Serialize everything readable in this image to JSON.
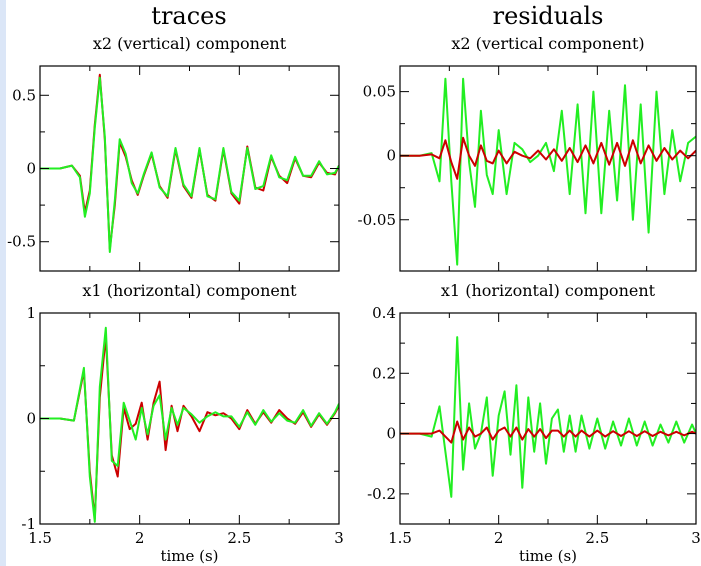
{
  "titles": {
    "left": "traces",
    "right": "residuals"
  },
  "xlabel": "time (s)",
  "colors": {
    "series_red": "#cc0000",
    "series_green": "#22ee22",
    "frame": "#000000",
    "page_edge": "#dbe6f7"
  },
  "chart_data": [
    {
      "id": "traces-x2",
      "type": "line",
      "subtitle": "x2 (vertical) component",
      "xlim": [
        1.5,
        3.0
      ],
      "ylim": [
        -0.7,
        0.7
      ],
      "xticks": [
        1.5,
        2,
        2.5,
        3
      ],
      "xtick_labels": [
        "",
        "",
        "",
        ""
      ],
      "yticks": [
        -0.5,
        0,
        0.5
      ],
      "ytick_labels": [
        "-0.5",
        "0",
        "0.5"
      ],
      "xlabel": "",
      "series": [
        {
          "color": "red",
          "x": [
            1.5,
            1.6,
            1.66,
            1.7,
            1.725,
            1.75,
            1.775,
            1.8,
            1.825,
            1.85,
            1.875,
            1.9,
            1.93,
            1.96,
            1.99,
            2.02,
            2.06,
            2.1,
            2.14,
            2.18,
            2.22,
            2.26,
            2.3,
            2.34,
            2.38,
            2.42,
            2.46,
            2.5,
            2.54,
            2.58,
            2.62,
            2.66,
            2.7,
            2.74,
            2.78,
            2.82,
            2.86,
            2.9,
            2.94,
            2.98,
            3.0
          ],
          "y": [
            0,
            0,
            0.02,
            -0.05,
            -0.3,
            -0.15,
            0.3,
            0.64,
            0.2,
            -0.55,
            -0.25,
            0.18,
            0.08,
            -0.08,
            -0.18,
            -0.05,
            0.1,
            -0.12,
            -0.2,
            0.13,
            -0.12,
            -0.2,
            0.13,
            -0.18,
            -0.22,
            0.13,
            -0.17,
            -0.24,
            0.15,
            -0.13,
            -0.15,
            0.08,
            -0.05,
            -0.1,
            0.07,
            -0.05,
            -0.06,
            0.04,
            -0.03,
            -0.04,
            0.02
          ]
        },
        {
          "color": "green",
          "x": [
            1.5,
            1.6,
            1.66,
            1.7,
            1.725,
            1.75,
            1.775,
            1.8,
            1.825,
            1.85,
            1.875,
            1.9,
            1.93,
            1.96,
            1.99,
            2.02,
            2.06,
            2.1,
            2.14,
            2.18,
            2.22,
            2.26,
            2.3,
            2.34,
            2.38,
            2.42,
            2.46,
            2.5,
            2.54,
            2.58,
            2.62,
            2.66,
            2.7,
            2.74,
            2.78,
            2.82,
            2.86,
            2.9,
            2.94,
            2.98,
            3.0
          ],
          "y": [
            0,
            0,
            0.02,
            -0.06,
            -0.33,
            -0.17,
            0.28,
            0.62,
            0.22,
            -0.57,
            -0.22,
            0.2,
            0.1,
            -0.1,
            -0.17,
            -0.04,
            0.11,
            -0.13,
            -0.19,
            0.14,
            -0.11,
            -0.19,
            0.14,
            -0.19,
            -0.21,
            0.14,
            -0.16,
            -0.22,
            0.14,
            -0.14,
            -0.12,
            0.09,
            -0.06,
            -0.08,
            0.08,
            -0.05,
            -0.05,
            0.05,
            -0.04,
            -0.03,
            0.02
          ]
        }
      ]
    },
    {
      "id": "residuals-x2",
      "type": "line",
      "subtitle": "x2 (vertical component)",
      "xlim": [
        1.5,
        3.0
      ],
      "ylim": [
        -0.09,
        0.07
      ],
      "xticks": [
        1.5,
        2,
        2.5,
        3
      ],
      "xtick_labels": [
        "",
        "",
        "",
        ""
      ],
      "yticks": [
        -0.05,
        0,
        0.05
      ],
      "ytick_labels": [
        "-0.05",
        "0",
        "0.05"
      ],
      "xlabel": "",
      "series": [
        {
          "color": "green",
          "x": [
            1.5,
            1.6,
            1.66,
            1.7,
            1.73,
            1.76,
            1.79,
            1.82,
            1.85,
            1.88,
            1.91,
            1.94,
            1.97,
            2.0,
            2.04,
            2.08,
            2.12,
            2.16,
            2.2,
            2.24,
            2.28,
            2.32,
            2.36,
            2.4,
            2.44,
            2.48,
            2.52,
            2.56,
            2.6,
            2.64,
            2.68,
            2.72,
            2.76,
            2.8,
            2.84,
            2.88,
            2.92,
            2.96,
            3.0
          ],
          "y": [
            0,
            0,
            0.002,
            -0.02,
            0.06,
            -0.02,
            -0.085,
            0.06,
            -0.005,
            -0.04,
            0.035,
            -0.015,
            -0.03,
            0.02,
            -0.03,
            0.01,
            0.005,
            -0.005,
            0.0,
            0.01,
            -0.012,
            0.035,
            -0.03,
            0.04,
            -0.045,
            0.05,
            -0.045,
            0.035,
            -0.035,
            0.055,
            -0.05,
            0.04,
            -0.06,
            0.05,
            -0.03,
            0.02,
            -0.02,
            0.01,
            0.015
          ]
        },
        {
          "color": "red",
          "x": [
            1.5,
            1.6,
            1.66,
            1.7,
            1.73,
            1.76,
            1.79,
            1.82,
            1.85,
            1.88,
            1.91,
            1.94,
            1.97,
            2.0,
            2.04,
            2.08,
            2.12,
            2.16,
            2.2,
            2.24,
            2.28,
            2.32,
            2.36,
            2.4,
            2.44,
            2.48,
            2.52,
            2.56,
            2.6,
            2.64,
            2.68,
            2.72,
            2.76,
            2.8,
            2.84,
            2.88,
            2.92,
            2.96,
            3.0
          ],
          "y": [
            0,
            0,
            0.001,
            -0.002,
            0.012,
            -0.005,
            -0.018,
            0.014,
            0.0,
            -0.008,
            0.008,
            -0.004,
            -0.006,
            0.004,
            -0.006,
            0.003,
            0.0,
            -0.002,
            0.004,
            -0.003,
            0.005,
            -0.004,
            0.006,
            -0.005,
            0.008,
            -0.006,
            0.01,
            -0.007,
            0.01,
            -0.008,
            0.012,
            -0.006,
            0.008,
            -0.004,
            0.006,
            -0.003,
            0.004,
            -0.002,
            0.004
          ]
        }
      ]
    },
    {
      "id": "traces-x1",
      "type": "line",
      "subtitle": "x1 (horizontal) component",
      "xlim": [
        1.5,
        3.0
      ],
      "ylim": [
        -1.0,
        1.0
      ],
      "xticks": [
        1.5,
        2,
        2.5,
        3
      ],
      "xtick_labels": [
        "1.5",
        "2",
        "2.5",
        "3"
      ],
      "yticks": [
        -1,
        0,
        1
      ],
      "ytick_labels": [
        "-1",
        "0",
        "1"
      ],
      "xlabel": "time (s)",
      "series": [
        {
          "color": "red",
          "x": [
            1.5,
            1.6,
            1.67,
            1.72,
            1.75,
            1.775,
            1.8,
            1.83,
            1.86,
            1.89,
            1.92,
            1.95,
            1.98,
            2.01,
            2.04,
            2.07,
            2.1,
            2.13,
            2.16,
            2.19,
            2.22,
            2.26,
            2.3,
            2.34,
            2.38,
            2.42,
            2.46,
            2.5,
            2.54,
            2.58,
            2.62,
            2.66,
            2.7,
            2.74,
            2.78,
            2.82,
            2.86,
            2.9,
            2.94,
            2.98,
            3.0
          ],
          "y": [
            0,
            0,
            -0.02,
            0.45,
            -0.5,
            -0.95,
            0.2,
            0.78,
            -0.35,
            -0.55,
            0.1,
            -0.1,
            -0.05,
            0.15,
            -0.2,
            0.15,
            0.35,
            -0.3,
            0.12,
            -0.12,
            0.12,
            0.02,
            -0.12,
            0.06,
            0.03,
            0.05,
            0.0,
            -0.1,
            0.08,
            -0.05,
            0.06,
            -0.04,
            0.08,
            0.0,
            -0.05,
            0.06,
            -0.08,
            0.04,
            -0.06,
            0.05,
            0.12
          ]
        },
        {
          "color": "green",
          "x": [
            1.5,
            1.6,
            1.67,
            1.72,
            1.75,
            1.775,
            1.8,
            1.83,
            1.86,
            1.89,
            1.92,
            1.95,
            1.98,
            2.01,
            2.04,
            2.07,
            2.1,
            2.13,
            2.16,
            2.19,
            2.22,
            2.26,
            2.3,
            2.34,
            2.38,
            2.42,
            2.46,
            2.5,
            2.54,
            2.58,
            2.62,
            2.66,
            2.7,
            2.74,
            2.78,
            2.82,
            2.86,
            2.9,
            2.94,
            2.98,
            3.0
          ],
          "y": [
            0,
            0,
            -0.02,
            0.48,
            -0.55,
            -0.98,
            0.3,
            0.86,
            -0.4,
            -0.45,
            0.15,
            -0.02,
            -0.2,
            0.1,
            -0.15,
            0.12,
            0.22,
            -0.2,
            0.1,
            -0.06,
            0.1,
            0.04,
            -0.04,
            0.02,
            0.06,
            0.02,
            0.02,
            -0.08,
            0.06,
            -0.06,
            0.08,
            -0.03,
            0.05,
            -0.02,
            -0.04,
            0.08,
            -0.07,
            0.05,
            -0.05,
            0.06,
            0.14
          ]
        }
      ]
    },
    {
      "id": "residuals-x1",
      "type": "line",
      "subtitle": "x1 (horizontal) component",
      "xlim": [
        1.5,
        3.0
      ],
      "ylim": [
        -0.3,
        0.4
      ],
      "xticks": [
        1.5,
        2,
        2.5,
        3
      ],
      "xtick_labels": [
        "1.5",
        "2",
        "2.5",
        "3"
      ],
      "yticks": [
        -0.2,
        0,
        0.2,
        0.4
      ],
      "ytick_labels": [
        "-0.2",
        "0",
        "0.2",
        "0.4"
      ],
      "xlabel": "time (s)",
      "series": [
        {
          "color": "green",
          "x": [
            1.5,
            1.6,
            1.66,
            1.7,
            1.73,
            1.76,
            1.79,
            1.82,
            1.85,
            1.88,
            1.91,
            1.94,
            1.97,
            2.0,
            2.03,
            2.06,
            2.09,
            2.12,
            2.15,
            2.18,
            2.21,
            2.24,
            2.27,
            2.3,
            2.33,
            2.36,
            2.39,
            2.42,
            2.46,
            2.5,
            2.54,
            2.58,
            2.62,
            2.66,
            2.7,
            2.74,
            2.78,
            2.82,
            2.86,
            2.9,
            2.94,
            2.98,
            3.0
          ],
          "y": [
            0,
            0,
            -0.01,
            0.09,
            -0.06,
            -0.21,
            0.32,
            -0.12,
            0.1,
            -0.05,
            0.0,
            0.12,
            -0.14,
            0.06,
            0.14,
            -0.07,
            0.16,
            -0.18,
            0.12,
            -0.06,
            0.1,
            -0.1,
            0.05,
            0.08,
            -0.06,
            0.06,
            -0.06,
            0.06,
            -0.05,
            0.05,
            -0.05,
            0.04,
            -0.04,
            0.05,
            -0.04,
            0.04,
            -0.04,
            0.03,
            -0.03,
            0.04,
            -0.03,
            0.03,
            0.0
          ]
        },
        {
          "color": "red",
          "x": [
            1.5,
            1.6,
            1.66,
            1.7,
            1.73,
            1.76,
            1.79,
            1.82,
            1.85,
            1.88,
            1.91,
            1.94,
            1.97,
            2.0,
            2.03,
            2.06,
            2.09,
            2.12,
            2.15,
            2.18,
            2.21,
            2.24,
            2.27,
            2.3,
            2.33,
            2.36,
            2.39,
            2.42,
            2.46,
            2.5,
            2.54,
            2.58,
            2.62,
            2.66,
            2.7,
            2.74,
            2.78,
            2.82,
            2.86,
            2.9,
            2.94,
            2.98,
            3.0
          ],
          "y": [
            0,
            0,
            0.0,
            0.01,
            -0.01,
            -0.03,
            0.04,
            -0.02,
            0.02,
            -0.01,
            0.0,
            0.02,
            -0.02,
            0.01,
            0.02,
            -0.01,
            0.02,
            -0.02,
            0.015,
            -0.01,
            0.015,
            -0.015,
            0.01,
            0.01,
            -0.01,
            0.01,
            -0.01,
            0.01,
            -0.01,
            0.01,
            -0.01,
            0.008,
            -0.008,
            0.008,
            -0.008,
            0.008,
            -0.008,
            0.006,
            -0.006,
            0.006,
            -0.006,
            0.006,
            0.0
          ]
        }
      ]
    }
  ]
}
